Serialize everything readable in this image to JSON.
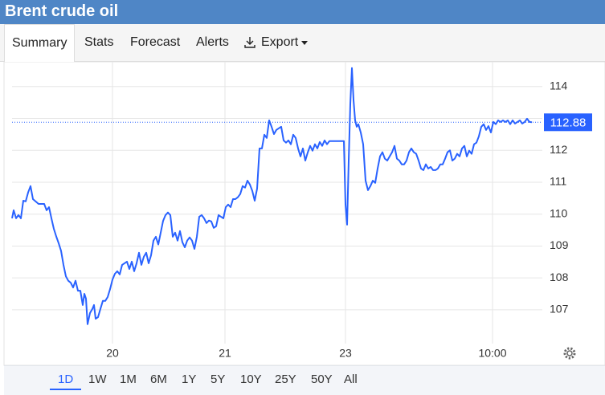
{
  "header": {
    "title": "Brent crude oil"
  },
  "tabs": [
    "Summary",
    "Stats",
    "Forecast",
    "Alerts",
    "Export"
  ],
  "ranges": [
    "1D",
    "1W",
    "1M",
    "6M",
    "1Y",
    "5Y",
    "10Y",
    "25Y",
    "50Y",
    "All"
  ],
  "chart_data": {
    "type": "line",
    "color": "#2962ff",
    "grid": true,
    "xlim": [
      0,
      660
    ],
    "ylim": [
      105.94,
      114.7
    ],
    "xticks": [
      {
        "value": 125,
        "label": "20"
      },
      {
        "value": 265,
        "label": "21"
      },
      {
        "value": 415,
        "label": "23"
      },
      {
        "value": 598,
        "label": "10:00"
      }
    ],
    "yticks": [
      107,
      108,
      109,
      110,
      111,
      112,
      113,
      114
    ],
    "last_value": 112.88,
    "x": [
      0,
      2,
      5,
      8,
      11,
      14,
      17,
      20,
      23,
      26,
      33,
      40,
      43,
      46,
      49,
      52,
      55,
      58,
      61,
      64,
      67,
      70,
      73,
      76,
      79,
      82,
      85,
      88,
      90,
      92,
      94,
      97,
      100,
      102,
      104,
      107,
      110,
      113,
      116,
      119,
      122,
      125,
      128,
      131,
      134,
      137,
      140,
      143,
      146,
      149,
      152,
      155,
      158,
      161,
      164,
      167,
      170,
      173,
      176,
      179,
      182,
      185,
      188,
      191,
      194,
      197,
      200,
      203,
      206,
      209,
      212,
      215,
      218,
      221,
      224,
      227,
      230,
      233,
      236,
      239,
      242,
      245,
      248,
      251,
      254,
      257,
      260,
      263,
      266,
      269,
      272,
      275,
      278,
      281,
      284,
      287,
      290,
      293,
      296,
      299,
      302,
      305,
      308,
      311,
      314,
      317,
      320,
      323,
      326,
      329,
      332,
      335,
      338,
      341,
      344,
      347,
      350,
      353,
      356,
      359,
      362,
      365,
      368,
      371,
      374,
      377,
      380,
      383,
      386,
      389,
      392,
      395,
      398,
      401,
      404,
      407,
      410,
      413,
      415,
      417,
      419,
      421,
      423,
      425,
      427,
      429,
      431,
      434,
      437,
      440,
      443,
      446,
      449,
      452,
      455,
      458,
      461,
      464,
      467,
      470,
      473,
      476,
      479,
      482,
      485,
      488,
      491,
      494,
      497,
      500,
      503,
      506,
      509,
      512,
      515,
      518,
      521,
      524,
      527,
      530,
      533,
      536,
      539,
      542,
      545,
      548,
      551,
      554,
      557,
      560,
      563,
      566,
      569,
      572,
      575,
      578,
      581,
      584,
      587,
      590,
      593,
      596,
      599,
      602,
      605,
      608,
      611,
      614,
      617,
      620,
      623,
      626,
      629,
      632,
      635,
      638,
      641,
      644,
      647
    ],
    "values": [
      109.87,
      110.12,
      109.87,
      109.97,
      109.87,
      110.42,
      110.4,
      110.68,
      110.88,
      110.47,
      110.32,
      110.32,
      110.12,
      110.22,
      109.87,
      109.54,
      109.3,
      109.09,
      108.85,
      108.41,
      108.05,
      107.91,
      107.85,
      107.7,
      107.91,
      107.6,
      107.6,
      107.15,
      107.5,
      107.35,
      106.55,
      106.9,
      107.03,
      107.15,
      106.72,
      106.77,
      107.03,
      107.28,
      107.28,
      107.4,
      107.65,
      107.95,
      108.13,
      108.21,
      108.11,
      108.41,
      108.46,
      108.51,
      108.28,
      108.51,
      108.21,
      108.46,
      108.79,
      108.41,
      108.66,
      108.79,
      108.46,
      108.71,
      109.17,
      109.29,
      109.05,
      109.42,
      109.79,
      109.97,
      110.05,
      109.97,
      109.29,
      109.42,
      109.17,
      109.47,
      109.12,
      108.96,
      109.17,
      109.27,
      109.17,
      108.91,
      109.29,
      109.92,
      109.97,
      109.87,
      109.72,
      109.8,
      109.77,
      109.57,
      109.62,
      109.97,
      109.92,
      109.87,
      110.22,
      110.3,
      110.22,
      110.47,
      110.47,
      110.53,
      110.63,
      110.88,
      110.83,
      111.05,
      110.93,
      110.73,
      110.42,
      110.8,
      112.06,
      112.06,
      112.49,
      112.39,
      112.94,
      112.74,
      112.51,
      112.64,
      112.69,
      112.74,
      112.31,
      112.24,
      112.31,
      112.19,
      112.49,
      112.39,
      112.06,
      111.81,
      112.06,
      111.68,
      111.93,
      112.14,
      111.99,
      112.19,
      112.06,
      112.26,
      112.14,
      112.31,
      112.19,
      112.29,
      112.29,
      112.29,
      112.29,
      112.29,
      112.29,
      112.29,
      110.3,
      109.67,
      111.68,
      113.45,
      114.58,
      113.58,
      112.94,
      112.74,
      112.82,
      112.56,
      112.19,
      111.05,
      110.75,
      110.88,
      111.05,
      110.98,
      111.43,
      111.81,
      111.94,
      111.74,
      111.68,
      111.81,
      111.94,
      112.14,
      111.74,
      111.68,
      111.56,
      111.56,
      111.68,
      111.94,
      112.06,
      111.94,
      111.89,
      111.68,
      111.43,
      111.38,
      111.56,
      111.43,
      111.48,
      111.38,
      111.38,
      111.43,
      111.56,
      111.56,
      111.74,
      111.94,
      112.0,
      111.68,
      111.74,
      111.89,
      111.81,
      112.06,
      112.14,
      111.81,
      111.99,
      111.89,
      112.19,
      112.24,
      112.44,
      112.74,
      112.82,
      112.64,
      112.76,
      112.56,
      112.89,
      112.82,
      112.94,
      112.89,
      112.94,
      112.89,
      112.94,
      112.82,
      112.94,
      112.84,
      112.89,
      112.94,
      112.84,
      112.89,
      112.99,
      112.89,
      112.88
    ]
  }
}
